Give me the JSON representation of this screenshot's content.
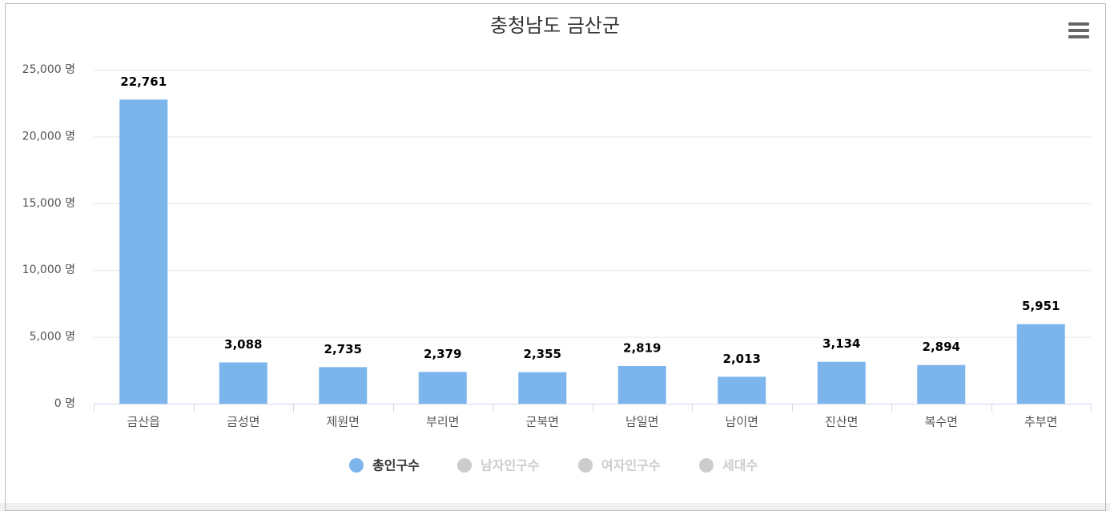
{
  "chart_data": {
    "type": "bar",
    "title": "충청남도 금산군",
    "categories": [
      "금산읍",
      "금성면",
      "제원면",
      "부리면",
      "군북면",
      "남일면",
      "남이면",
      "진산면",
      "복수면",
      "추부면"
    ],
    "series": [
      {
        "name": "총인구수",
        "color": "#7cb5ec",
        "values": [
          22761,
          3088,
          2735,
          2379,
          2355,
          2819,
          2013,
          3134,
          2894,
          5951
        ],
        "value_labels": [
          "22,761",
          "3,088",
          "2,735",
          "2,379",
          "2,355",
          "2,819",
          "2,013",
          "3,134",
          "2,894",
          "5,951"
        ]
      }
    ],
    "inactive_series": [
      {
        "name": "남자인구수"
      },
      {
        "name": "여자인구수"
      },
      {
        "name": "세대수"
      }
    ],
    "ylim": [
      0,
      25000
    ],
    "yticks": [
      {
        "value": 0,
        "label": "0 명"
      },
      {
        "value": 5000,
        "label": "5,000 명"
      },
      {
        "value": 10000,
        "label": "10,000 명"
      },
      {
        "value": 15000,
        "label": "15,000 명"
      },
      {
        "value": 20000,
        "label": "20,000 명"
      },
      {
        "value": 25000,
        "label": "25,000 명"
      }
    ],
    "grid": true
  }
}
